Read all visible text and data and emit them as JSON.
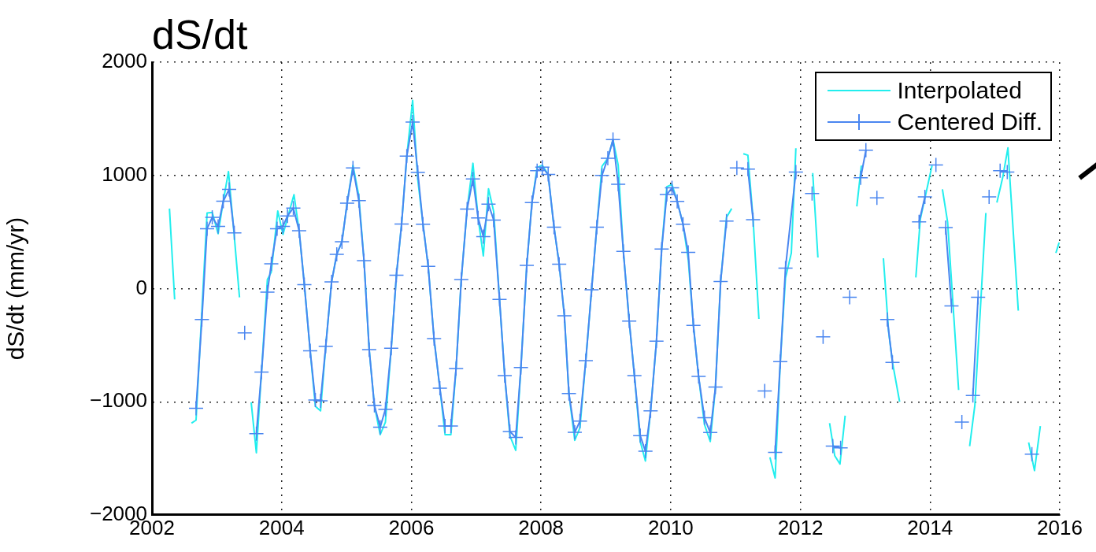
{
  "chart_data": {
    "type": "line",
    "title": "dS/dt",
    "ylabel": "dS/dt (mm/yr)",
    "xlim": [
      2002,
      2016
    ],
    "xticks": [
      2002,
      2004,
      2006,
      2008,
      2010,
      2012,
      2014,
      2016
    ],
    "ylim": [
      -2000,
      2000
    ],
    "yticks": [
      -2000,
      -1000,
      0,
      1000,
      2000
    ],
    "grid": true,
    "legend": "top right",
    "series": [
      {
        "name": "Interpolated",
        "color": "#22eeee",
        "marker": "none",
        "x": [
          2002.27,
          2002.35,
          2002.48,
          2002.61,
          2002.68,
          2002.85,
          2002.93,
          2003.02,
          2003.1,
          2003.18,
          2003.27,
          2003.35,
          2003.44,
          2003.53,
          2003.61,
          2003.78,
          2003.84,
          2003.94,
          2004.02,
          2004.19,
          2004.27,
          2004.35,
          2004.44,
          2004.52,
          2004.6,
          2004.68,
          2004.77,
          2004.85,
          2004.93,
          2005.01,
          2005.1,
          2005.19,
          2005.27,
          2005.35,
          2005.43,
          2005.52,
          2005.6,
          2005.69,
          2005.77,
          2005.85,
          2005.93,
          2006.02,
          2006.1,
          2006.18,
          2006.26,
          2006.35,
          2006.44,
          2006.52,
          2006.61,
          2006.69,
          2006.77,
          2006.86,
          2006.95,
          2007.03,
          2007.11,
          2007.19,
          2007.27,
          2007.36,
          2007.44,
          2007.52,
          2007.61,
          2007.69,
          2007.78,
          2007.86,
          2007.94,
          2008.02,
          2008.11,
          2008.2,
          2008.28,
          2008.36,
          2008.43,
          2008.52,
          2008.6,
          2008.69,
          2008.78,
          2008.86,
          2008.94,
          2009.03,
          2009.11,
          2009.19,
          2009.27,
          2009.36,
          2009.44,
          2009.53,
          2009.61,
          2009.69,
          2009.78,
          2009.86,
          2009.94,
          2010.02,
          2010.1,
          2010.19,
          2010.27,
          2010.35,
          2010.43,
          2010.52,
          2010.61,
          2010.69,
          2010.77,
          2010.86,
          2010.94,
          2011.03,
          2011.12,
          2011.19,
          2011.27,
          2011.36,
          2011.45,
          2011.53,
          2011.61,
          2011.69,
          2011.77,
          2011.86,
          2011.93,
          2012.05,
          2012.19,
          2012.27,
          2012.36,
          2012.45,
          2012.53,
          2012.61,
          2012.69,
          2012.78,
          2012.87,
          2012.94,
          2013.02,
          2013.15,
          2013.28,
          2013.36,
          2013.42,
          2013.53,
          2013.65,
          2013.78,
          2013.85,
          2014.03,
          2014.11,
          2014.19,
          2014.27,
          2014.44,
          2014.52,
          2014.61,
          2014.69,
          2014.86,
          2014.95,
          2015.03,
          2015.12,
          2015.2,
          2015.36,
          2015.44,
          2015.52,
          2015.61,
          2015.7,
          2015.82,
          2015.94,
          2015.99
        ],
        "values": [
          707,
          -96,
          null,
          -1189,
          -1162,
          668,
          673,
          485,
          772,
          1034,
          458,
          -77,
          null,
          -1005,
          -1450,
          80,
          145,
          686,
          479,
          830,
          511,
          35,
          -550,
          -1040,
          -1080,
          -509,
          59,
          303,
          414,
          755,
          1090,
          820,
          247,
          -539,
          -1032,
          -1290,
          -1180,
          -527,
          119,
          571,
          1170,
          1662,
          960,
          568,
          197,
          -442,
          -880,
          -1290,
          -1290,
          -706,
          80,
          702,
          1107,
          624,
          289,
          882,
          681,
          -96,
          -768,
          -1300,
          -1429,
          -697,
          205,
          760,
          1070,
          1090,
          1008,
          543,
          216,
          -240,
          -927,
          -1340,
          -1230,
          -637,
          -10,
          543,
          1080,
          1152,
          1316,
          1090,
          328,
          -287,
          -768,
          -1350,
          -1523,
          -1080,
          -465,
          349,
          900,
          920,
          771,
          568,
          260,
          -326,
          -776,
          -1200,
          -1351,
          -870,
          63,
          630,
          707,
          null,
          1191,
          1178,
          616,
          -268,
          null,
          -1490,
          -1673,
          -646,
          93,
          315,
          1240,
          null,
          1021,
          275,
          null,
          -1189,
          -1477,
          -1550,
          -1123,
          null,
          726,
          1087,
          null,
          null,
          268,
          -378,
          -652,
          -1000,
          null,
          98,
          616,
          1087,
          null,
          877,
          589,
          -896,
          null,
          -1393,
          -1032,
          668,
          null,
          760,
          982,
          1243,
          -195,
          null,
          -1359,
          -1608,
          -1215,
          null,
          315,
          407
        ]
      },
      {
        "name": "Centered Diff.",
        "color": "#4a86f0",
        "marker": "cross",
        "x": [
          2002.68,
          2002.77,
          2002.85,
          2002.93,
          2003.02,
          2003.1,
          2003.19,
          2003.27,
          2003.35,
          2003.43,
          2003.52,
          2003.61,
          2003.69,
          2003.78,
          2003.84,
          2003.93,
          2004.02,
          2004.09,
          2004.18,
          2004.27,
          2004.35,
          2004.44,
          2004.52,
          2004.6,
          2004.68,
          2004.77,
          2004.85,
          2004.93,
          2005.01,
          2005.1,
          2005.19,
          2005.27,
          2005.35,
          2005.43,
          2005.52,
          2005.6,
          2005.69,
          2005.77,
          2005.85,
          2005.93,
          2006.02,
          2006.1,
          2006.18,
          2006.26,
          2006.35,
          2006.44,
          2006.52,
          2006.61,
          2006.69,
          2006.77,
          2006.86,
          2006.95,
          2007.03,
          2007.11,
          2007.19,
          2007.27,
          2007.36,
          2007.44,
          2007.52,
          2007.61,
          2007.69,
          2007.78,
          2007.86,
          2007.94,
          2008.02,
          2008.11,
          2008.2,
          2008.28,
          2008.36,
          2008.43,
          2008.52,
          2008.6,
          2008.69,
          2008.78,
          2008.86,
          2008.94,
          2009.03,
          2009.11,
          2009.19,
          2009.27,
          2009.36,
          2009.44,
          2009.53,
          2009.61,
          2009.69,
          2009.78,
          2009.86,
          2009.94,
          2010.02,
          2010.1,
          2010.19,
          2010.27,
          2010.35,
          2010.43,
          2010.52,
          2010.61,
          2010.69,
          2010.77,
          2010.86,
          2010.94,
          2011.02,
          2011.1,
          2011.19,
          2011.27,
          2011.36,
          2011.45,
          2011.53,
          2011.61,
          2011.69,
          2011.77,
          2011.93,
          2012.02,
          2012.1,
          2012.18,
          2012.26,
          2012.35,
          2012.43,
          2012.5,
          2012.62,
          2012.69,
          2012.76,
          2012.85,
          2012.93,
          2013.01,
          2013.1,
          2013.18,
          2013.26,
          2013.34,
          2013.42,
          2013.6,
          2013.83,
          2013.92,
          2014.0,
          2014.09,
          2014.17,
          2014.24,
          2014.33,
          2014.41,
          2014.49,
          2014.58,
          2014.66,
          2014.74,
          2014.83,
          2014.91,
          2015.0,
          2015.08,
          2015.19,
          2015.38,
          2015.57
        ],
        "values": [
          -1058,
          -273,
          529,
          630,
          550,
          772,
          877,
          492,
          null,
          -391,
          null,
          -1281,
          -737,
          -31,
          219,
          529,
          550,
          642,
          712,
          511,
          35,
          -550,
          -985,
          -991,
          -509,
          59,
          303,
          414,
          755,
          1066,
          778,
          247,
          -539,
          -1032,
          -1225,
          -1066,
          -527,
          119,
          571,
          1170,
          1471,
          1026,
          568,
          197,
          -442,
          -880,
          -1214,
          -1214,
          -706,
          80,
          702,
          968,
          624,
          459,
          746,
          605,
          -96,
          -768,
          -1263,
          -1315,
          -697,
          205,
          760,
          1042,
          1073,
          1008,
          543,
          216,
          -240,
          -927,
          -1270,
          -1171,
          -637,
          -10,
          543,
          1000,
          1152,
          1316,
          922,
          328,
          -287,
          -768,
          -1299,
          -1437,
          -1080,
          -465,
          349,
          831,
          891,
          771,
          568,
          320,
          -326,
          -776,
          -1141,
          -1272,
          -870,
          63,
          596,
          null,
          1066,
          null,
          1055,
          609,
          null,
          -904,
          null,
          -1447,
          -646,
          181,
          1030,
          null,
          null,
          840,
          null,
          -426,
          null,
          -1391,
          -1407,
          null,
          -76,
          null,
          979,
          1223,
          null,
          801,
          null,
          -273,
          -652,
          null,
          589,
          810,
          null,
          1092,
          null,
          540,
          -153,
          null,
          -1179,
          null,
          -944,
          -76,
          null,
          810,
          null,
          1042,
          1030,
          null,
          -1462
        ]
      }
    ]
  }
}
